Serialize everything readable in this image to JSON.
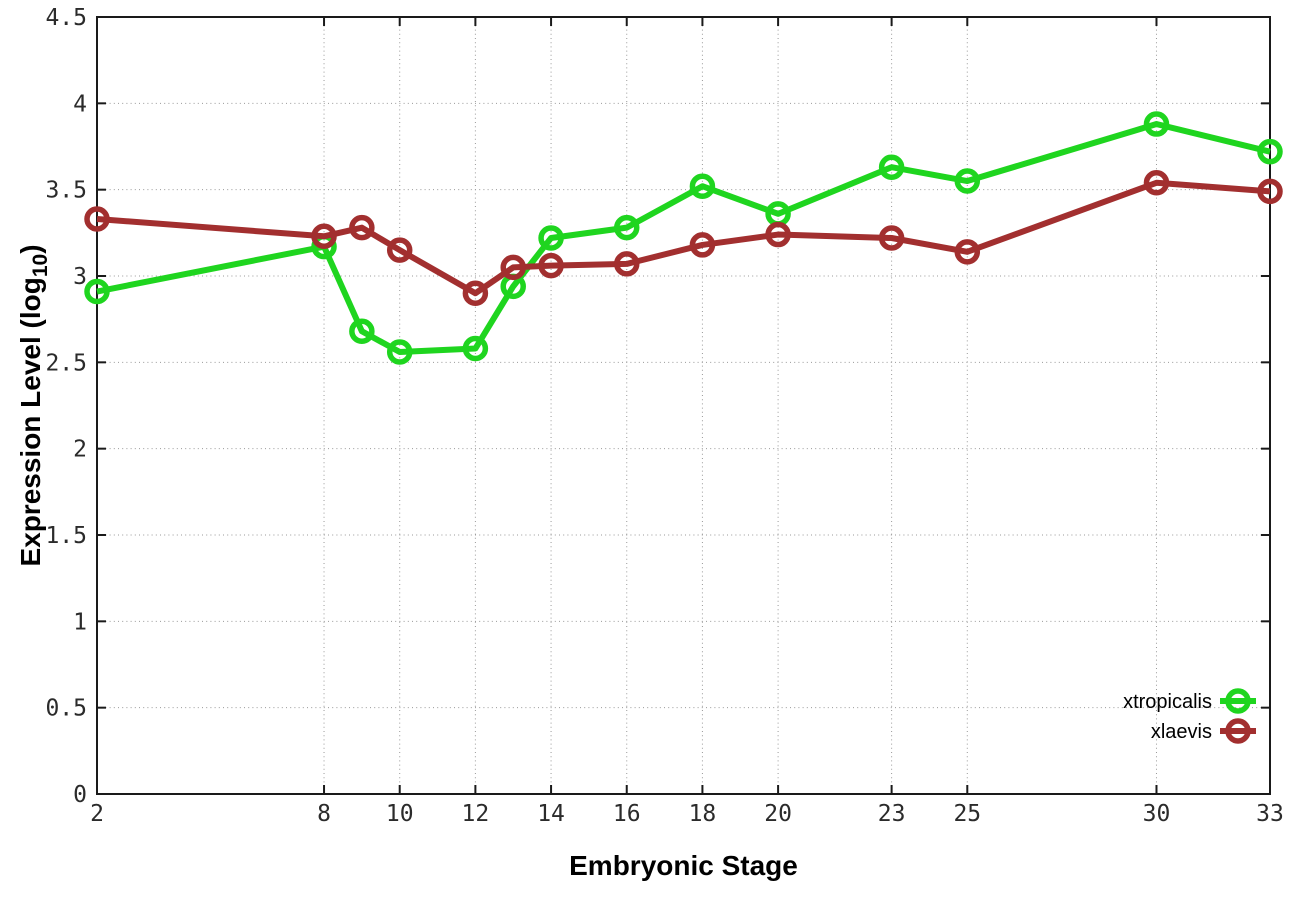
{
  "page": {
    "background": "#ffffff"
  },
  "chart_data": {
    "type": "line",
    "title": "",
    "xlabel": "Embryonic Stage",
    "ylabel": "Expression Level (log10)",
    "ylabel_main": "Expression Level (log",
    "ylabel_sub": "10",
    "ylabel_end": ")",
    "x": [
      2,
      8,
      9,
      10,
      12,
      13,
      14,
      16,
      18,
      20,
      23,
      25,
      30,
      33
    ],
    "series": [
      {
        "name": "xtropicalis",
        "color": "#1fd51f",
        "marker": "open-circle",
        "values": [
          2.91,
          3.17,
          2.68,
          2.56,
          2.58,
          2.94,
          3.22,
          3.28,
          3.52,
          3.36,
          3.63,
          3.55,
          3.88,
          3.72
        ]
      },
      {
        "name": "xlaevis",
        "color": "#a22f2f",
        "marker": "open-circle",
        "values": [
          3.33,
          3.23,
          3.28,
          3.15,
          2.9,
          3.05,
          3.06,
          3.07,
          3.18,
          3.24,
          3.22,
          3.14,
          3.54,
          3.49
        ]
      }
    ],
    "xtick_values": [
      2,
      8,
      10,
      12,
      14,
      16,
      18,
      20,
      23,
      25,
      30,
      33
    ],
    "xtick_labels": [
      "2",
      "8",
      "10",
      "12",
      "14",
      "16",
      "18",
      "20",
      "23",
      "25",
      "30",
      "33"
    ],
    "ytick_values": [
      0,
      0.5,
      1,
      1.5,
      2,
      2.5,
      3,
      3.5,
      4,
      4.5
    ],
    "ytick_labels": [
      "0",
      "0.5",
      "1",
      "1.5",
      "2",
      "2.5",
      "3",
      "3.5",
      "4",
      "4.5"
    ],
    "xlim": [
      2,
      33
    ],
    "ylim": [
      0,
      4.5
    ],
    "grid": true,
    "legend": {
      "position": "bottom-right",
      "entries": [
        "xtropicalis",
        "xlaevis"
      ]
    },
    "colors": {
      "axis": "#1a1a1a",
      "grid": "#999999",
      "tick_text": "#2b2b2b",
      "label_text": "#000000"
    }
  }
}
